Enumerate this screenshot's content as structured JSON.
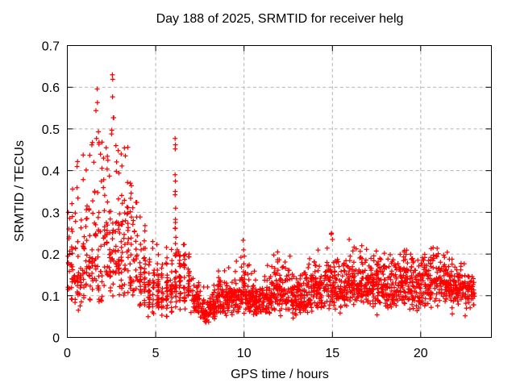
{
  "page": {
    "background": "#ffffff"
  },
  "chart_data": {
    "type": "scatter",
    "title": "Day 188 of 2025, SRMTID for receiver helg",
    "xlabel": "GPS time / hours",
    "ylabel": "SRMTID / TECUs",
    "xlim": [
      0,
      24
    ],
    "ylim": [
      0,
      0.7
    ],
    "xticks": [
      0,
      5,
      10,
      15,
      20
    ],
    "yticks": [
      0,
      0.1,
      0.2,
      0.3,
      0.4,
      0.5,
      0.6,
      0.7
    ],
    "grid": true,
    "legend": "none",
    "seed": 7,
    "marker": {
      "shape": "plus",
      "color": "#ff0000",
      "size": 6,
      "stroke_width": 1.25
    },
    "colors": {
      "frame": "#000000",
      "grid": "#b4b4b4",
      "text": "#000000",
      "background": "#ffffff"
    },
    "series": [
      {
        "name": "SRMTID",
        "bins_note": "dense 24h scatter reconstructed from half-hour bins: [t_start, t_end, count, median_TECU, log_sigma, y_max]",
        "bins": [
          [
            0.0,
            0.5,
            45,
            0.17,
            0.4,
            0.42
          ],
          [
            0.5,
            1.0,
            45,
            0.16,
            0.4,
            0.45
          ],
          [
            1.0,
            1.5,
            45,
            0.19,
            0.42,
            0.52
          ],
          [
            1.5,
            2.0,
            45,
            0.21,
            0.45,
            0.6
          ],
          [
            2.0,
            2.5,
            45,
            0.23,
            0.45,
            0.58
          ],
          [
            2.5,
            3.0,
            45,
            0.22,
            0.48,
            0.64
          ],
          [
            3.0,
            3.5,
            45,
            0.2,
            0.42,
            0.47
          ],
          [
            3.5,
            4.0,
            45,
            0.19,
            0.4,
            0.43
          ],
          [
            4.0,
            4.5,
            45,
            0.14,
            0.38,
            0.35
          ],
          [
            4.5,
            5.0,
            45,
            0.11,
            0.35,
            0.3
          ],
          [
            5.0,
            5.5,
            45,
            0.11,
            0.35,
            0.3
          ],
          [
            5.5,
            6.0,
            45,
            0.12,
            0.32,
            0.26
          ],
          [
            6.0,
            6.5,
            45,
            0.14,
            0.33,
            0.28
          ],
          [
            6.5,
            7.0,
            45,
            0.14,
            0.3,
            0.25
          ],
          [
            7.0,
            7.5,
            45,
            0.09,
            0.3,
            0.18
          ],
          [
            7.5,
            8.0,
            45,
            0.065,
            0.3,
            0.13
          ],
          [
            8.0,
            8.5,
            52,
            0.075,
            0.28,
            0.14
          ],
          [
            8.5,
            9.0,
            52,
            0.09,
            0.26,
            0.16
          ],
          [
            9.0,
            9.5,
            52,
            0.1,
            0.26,
            0.17
          ],
          [
            9.5,
            10.0,
            52,
            0.11,
            0.28,
            0.2
          ],
          [
            10.0,
            10.5,
            52,
            0.105,
            0.28,
            0.23
          ],
          [
            10.5,
            11.0,
            52,
            0.09,
            0.26,
            0.16
          ],
          [
            11.0,
            11.5,
            52,
            0.1,
            0.26,
            0.18
          ],
          [
            11.5,
            12.0,
            52,
            0.11,
            0.28,
            0.21
          ],
          [
            12.0,
            12.5,
            52,
            0.11,
            0.28,
            0.2
          ],
          [
            12.5,
            13.0,
            52,
            0.1,
            0.28,
            0.19
          ],
          [
            13.0,
            13.5,
            52,
            0.1,
            0.26,
            0.17
          ],
          [
            13.5,
            14.0,
            52,
            0.11,
            0.26,
            0.2
          ],
          [
            14.0,
            14.5,
            52,
            0.12,
            0.28,
            0.22
          ],
          [
            14.5,
            15.0,
            52,
            0.13,
            0.3,
            0.25
          ],
          [
            15.0,
            15.5,
            52,
            0.12,
            0.27,
            0.2
          ],
          [
            15.5,
            16.0,
            52,
            0.13,
            0.27,
            0.23
          ],
          [
            16.0,
            16.5,
            52,
            0.13,
            0.26,
            0.22
          ],
          [
            16.5,
            17.0,
            52,
            0.14,
            0.26,
            0.22
          ],
          [
            17.0,
            17.5,
            52,
            0.13,
            0.26,
            0.21
          ],
          [
            17.5,
            18.0,
            52,
            0.13,
            0.26,
            0.22
          ],
          [
            18.0,
            18.5,
            52,
            0.12,
            0.26,
            0.2
          ],
          [
            18.5,
            19.0,
            52,
            0.13,
            0.26,
            0.21
          ],
          [
            19.0,
            19.5,
            52,
            0.13,
            0.27,
            0.22
          ],
          [
            19.5,
            20.0,
            52,
            0.11,
            0.27,
            0.19
          ],
          [
            20.0,
            20.5,
            52,
            0.13,
            0.26,
            0.22
          ],
          [
            20.5,
            21.0,
            52,
            0.14,
            0.26,
            0.22
          ],
          [
            21.0,
            21.5,
            52,
            0.13,
            0.25,
            0.21
          ],
          [
            21.5,
            22.0,
            52,
            0.13,
            0.24,
            0.2
          ],
          [
            22.0,
            22.5,
            52,
            0.12,
            0.22,
            0.18
          ],
          [
            22.5,
            23.05,
            48,
            0.11,
            0.22,
            0.16
          ]
        ],
        "outliers": [
          [
            0.05,
            0.3
          ],
          [
            0.08,
            0.26
          ],
          [
            0.55,
            0.41
          ],
          [
            1.5,
            0.42
          ],
          [
            1.62,
            0.544
          ],
          [
            1.65,
            0.477
          ],
          [
            1.69,
            0.596
          ],
          [
            1.7,
            0.563
          ],
          [
            2.05,
            0.43
          ],
          [
            2.2,
            0.455
          ],
          [
            2.5,
            0.488
          ],
          [
            2.52,
            0.497
          ],
          [
            2.55,
            0.63
          ],
          [
            2.57,
            0.619
          ],
          [
            2.56,
            0.577
          ],
          [
            2.6,
            0.527
          ],
          [
            2.63,
            0.527
          ],
          [
            2.75,
            0.46
          ],
          [
            3.05,
            0.44
          ],
          [
            3.42,
            0.456
          ],
          [
            5.07,
            0.223
          ],
          [
            6.1,
            0.477
          ],
          [
            6.12,
            0.462
          ],
          [
            6.11,
            0.452
          ],
          [
            6.1,
            0.39
          ],
          [
            6.12,
            0.375
          ],
          [
            6.11,
            0.35
          ],
          [
            6.1,
            0.342
          ],
          [
            6.13,
            0.31
          ],
          [
            6.12,
            0.283
          ],
          [
            6.1,
            0.262
          ],
          [
            6.14,
            0.24
          ],
          [
            6.12,
            0.225
          ],
          [
            6.22,
            0.21
          ],
          [
            6.3,
            0.205
          ],
          [
            6.35,
            0.195
          ],
          [
            9.95,
            0.233
          ],
          [
            9.98,
            0.21
          ],
          [
            10.02,
            0.195
          ],
          [
            11.9,
            0.205
          ],
          [
            12.6,
            0.195
          ],
          [
            14.95,
            0.25
          ],
          [
            15.0,
            0.235
          ],
          [
            15.95,
            0.235
          ],
          [
            20.7,
            0.215
          ]
        ]
      }
    ]
  }
}
